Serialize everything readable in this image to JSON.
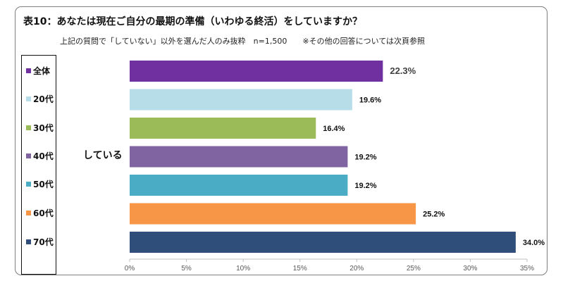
{
  "chart_data": {
    "type": "bar",
    "orientation": "horizontal",
    "title": "表10：あなたは現在ご自分の最期の準備（いわゆる終活）をしていますか？",
    "subtitle": "上記の質問で「していない」以外を選んだ人のみ抜粋　n=1,500　　※その他の回答については次頁参照",
    "category": "している",
    "series": [
      {
        "name": "全体",
        "value": 22.3,
        "label": "22.3%",
        "color": "#7030a0"
      },
      {
        "name": "20代",
        "value": 19.6,
        "label": "19.6%",
        "color": "#b7dee8"
      },
      {
        "name": "30代",
        "value": 16.4,
        "label": "16.4%",
        "color": "#9bbb59"
      },
      {
        "name": "40代",
        "value": 19.2,
        "label": "19.2%",
        "color": "#8064a2"
      },
      {
        "name": "50代",
        "value": 19.2,
        "label": "19.2%",
        "color": "#4bacc6"
      },
      {
        "name": "60代",
        "value": 25.2,
        "label": "25.2%",
        "color": "#f79646"
      },
      {
        "name": "70代",
        "value": 34.0,
        "label": "34.0%",
        "color": "#2f4e79"
      }
    ],
    "xlim": [
      0,
      35
    ],
    "xticks": [
      0,
      5,
      10,
      15,
      20,
      25,
      30,
      35
    ],
    "xtick_labels": [
      "0%",
      "5%",
      "10%",
      "15%",
      "20%",
      "25%",
      "30%",
      "35%"
    ],
    "grid": false,
    "legend_position": "left"
  }
}
